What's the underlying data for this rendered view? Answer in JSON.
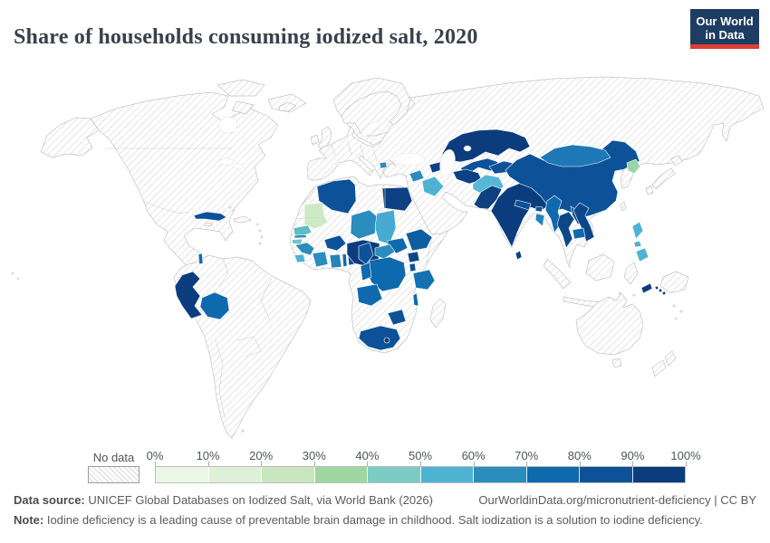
{
  "header": {
    "title": "Share of households consuming iodized salt, 2020",
    "logo": {
      "line1": "Our World",
      "line2": "in Data"
    }
  },
  "colors": {
    "logo_navy": "#1d3d63",
    "logo_red": "#dc3e34",
    "title_text": "#38414b",
    "body_text": "#5b5b5b"
  },
  "legend": {
    "no_data_label": "No data",
    "tick_labels": [
      "0%",
      "10%",
      "20%",
      "30%",
      "40%",
      "50%",
      "60%",
      "70%",
      "80%",
      "90%",
      "100%"
    ],
    "colors": [
      "#ebf7e6",
      "#dff0d8",
      "#c8e7bf",
      "#9ed7a0",
      "#7bccc4",
      "#4eb3d3",
      "#2b8cbe",
      "#0f69ad",
      "#0d5298",
      "#0c3c7e"
    ]
  },
  "chart_data": {
    "type": "heatmap",
    "title": "Share of households consuming iodized salt, 2020",
    "legend_position": "bottom",
    "unit": "%",
    "bins": [
      0,
      10,
      20,
      30,
      40,
      50,
      60,
      70,
      80,
      90,
      100
    ],
    "note": "choropleth world map; values are approximate bin assignments read from map colors",
    "series": [
      {
        "name": "Peru",
        "value": 95
      },
      {
        "name": "Bolivia",
        "value": 75
      },
      {
        "name": "Cuba",
        "value": 85
      },
      {
        "name": "Belize",
        "value": 75
      },
      {
        "name": "Mauritania",
        "value": 15
      },
      {
        "name": "Senegal",
        "value": 45
      },
      {
        "name": "Gambia",
        "value": 60
      },
      {
        "name": "Guinea-Bissau",
        "value": 45
      },
      {
        "name": "Guinea",
        "value": 65
      },
      {
        "name": "Sierra Leone",
        "value": 55
      },
      {
        "name": "Cote d'Ivoire",
        "value": 65
      },
      {
        "name": "Ghana",
        "value": 65
      },
      {
        "name": "Togo",
        "value": 75
      },
      {
        "name": "Benin",
        "value": 85
      },
      {
        "name": "Burkina Faso",
        "value": 85
      },
      {
        "name": "Nigeria",
        "value": 95
      },
      {
        "name": "Niger",
        "value": 65
      },
      {
        "name": "Chad",
        "value": 55
      },
      {
        "name": "Algeria",
        "value": 85
      },
      {
        "name": "Egypt",
        "value": 90
      },
      {
        "name": "Ethiopia",
        "value": 80
      },
      {
        "name": "South Sudan",
        "value": 75
      },
      {
        "name": "Uganda",
        "value": 90
      },
      {
        "name": "Tanzania",
        "value": 70
      },
      {
        "name": "DR Congo",
        "value": 75
      },
      {
        "name": "Central African Republic",
        "value": 65
      },
      {
        "name": "Cameroon",
        "value": 85
      },
      {
        "name": "Congo",
        "value": 75
      },
      {
        "name": "Angola",
        "value": 75
      },
      {
        "name": "Malawi",
        "value": 75
      },
      {
        "name": "Zimbabwe",
        "value": 85
      },
      {
        "name": "South Africa",
        "value": 85
      },
      {
        "name": "Lesotho",
        "value": 95
      },
      {
        "name": "North Macedonia",
        "value": 65
      },
      {
        "name": "Syria",
        "value": 65
      },
      {
        "name": "Iraq",
        "value": 55
      },
      {
        "name": "Armenia/Azerbaijan",
        "value": 90
      },
      {
        "name": "Kazakhstan",
        "value": 95
      },
      {
        "name": "Uzbekistan",
        "value": 85
      },
      {
        "name": "Turkmenistan",
        "value": 90
      },
      {
        "name": "Kyrgyzstan/Tajikistan",
        "value": 85
      },
      {
        "name": "Afghanistan",
        "value": 55
      },
      {
        "name": "Pakistan",
        "value": 90
      },
      {
        "name": "India",
        "value": 95
      },
      {
        "name": "Nepal",
        "value": 85
      },
      {
        "name": "Bhutan",
        "value": 85
      },
      {
        "name": "Bangladesh",
        "value": 65
      },
      {
        "name": "Sri Lanka",
        "value": 90
      },
      {
        "name": "China",
        "value": 85
      },
      {
        "name": "Mongolia",
        "value": 70
      },
      {
        "name": "North Korea",
        "value": 35
      },
      {
        "name": "Myanmar",
        "value": 75
      },
      {
        "name": "Thailand",
        "value": 90
      },
      {
        "name": "Laos",
        "value": 85
      },
      {
        "name": "Vietnam",
        "value": 90
      },
      {
        "name": "Cambodia",
        "value": 75
      },
      {
        "name": "Philippines",
        "value": 55
      },
      {
        "name": "Timor-Leste",
        "value": 95
      },
      {
        "name": "Solomon Islands",
        "value": 95
      }
    ]
  },
  "map": {
    "country_colors": {
      "peru": "#0b3d7e",
      "bolivia": "#0f69ad",
      "cuba": "#0d5298",
      "belize": "#0f69ad",
      "mauritania": "#cdeac6",
      "senegal": "#5fbcc4",
      "gambia": "#2e8fc0",
      "guinea-bissau": "#6fc4c6",
      "guinea": "#2b8cbe",
      "sierra-leone": "#4eb3d3",
      "cote-divoire": "#2b8cbe",
      "ghana": "#2583ba",
      "togo": "#0f69ad",
      "benin": "#0d5298",
      "burkina-faso": "#0d5298",
      "nigeria": "#0c3c7e",
      "niger": "#2b8cbe",
      "chad": "#49aacf",
      "algeria": "#0d5298",
      "egypt": "#0d4183",
      "ethiopia": "#0d5da1",
      "south-sudan": "#0f69ad",
      "uganda": "#0d4788",
      "rwanda-burundi": "#0d5298",
      "tanzania": "#1472b2",
      "drc": "#0f69ad",
      "car": "#2b8cbe",
      "cameroon": "#0d5298",
      "congo": "#0f69ad",
      "angola": "#0f69ad",
      "malawi": "#0f69ad",
      "zimbabwe": "#0d5298",
      "south-africa": "#0d5298",
      "lesotho": "#0c3c7e",
      "north-macedonia": "#2b8cbe",
      "syria": "#2b8cbe",
      "iraq": "#4eb3d3",
      "armenia-azerbaijan": "#0d4183",
      "kazakhstan": "#0c3c7e",
      "uzbekistan": "#0d5298",
      "turkmenistan": "#0c4184",
      "kyrgyzstan-tajikistan": "#0d5298",
      "afghanistan": "#56b7d6",
      "pakistan": "#0d417f",
      "india": "#0b3d7e",
      "nepal": "#0d5298",
      "bhutan": "#0d5298",
      "bangladesh": "#2583ba",
      "sri-lanka": "#0d4183",
      "china": "#0d5298",
      "mongolia": "#1e78b6",
      "north-korea": "#9ad5a5",
      "myanmar": "#0f69ad",
      "thailand": "#0d4788",
      "laos": "#0d5298",
      "vietnam": "#0d4788",
      "cambodia": "#0f69ad",
      "philippines": "#4eb3d3",
      "timor-leste": "#0c3c7e",
      "solomon-islands": "#0c3c7e"
    }
  },
  "footer": {
    "source_label": "Data source:",
    "source_text": " UNICEF Global Databases on Iodized Salt, via World Bank (2026)",
    "link_text": "OurWorldinData.org/micronutrient-deficiency | CC BY",
    "note_label": "Note:",
    "note_text": " Iodine deficiency is a leading cause of preventable brain damage in childhood. Salt iodization is a solution to iodine deficiency."
  }
}
